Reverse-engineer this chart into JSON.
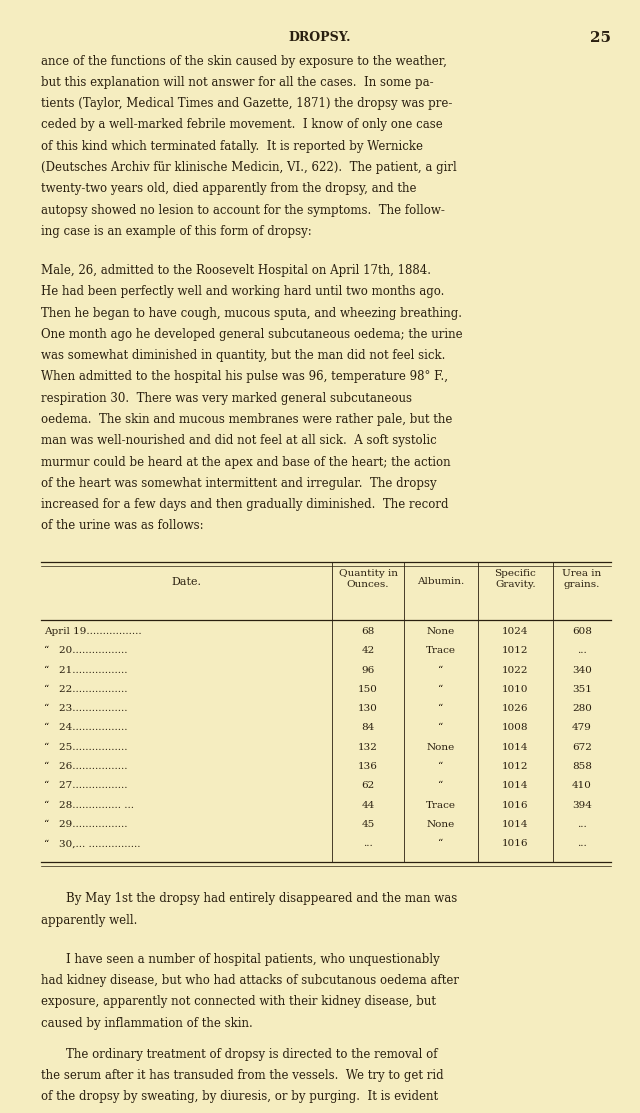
{
  "background_color": "#f5edc0",
  "text_color": "#2a2010",
  "page_header": "DROPSY.",
  "page_number": "25",
  "p1_lines": [
    "ance of the functions of the skin caused by exposure to the weather,",
    "but this explanation will not answer for all the cases.  In some pa-",
    "tients (Taylor, Medical Times and Gazette, 1871) the dropsy was pre-",
    "ceded by a well-marked febrile movement.  I know of only one case",
    "of this kind which terminated fatally.  It is reported by Wernicke",
    "(Deutsches Archiv für klinische Medicin, VI., 622).  The patient, a girl",
    "twenty-two years old, died apparently from the dropsy, and the",
    "autopsy showed no lesion to account for the symptoms.  The follow-",
    "ing case is an example of this form of dropsy:"
  ],
  "p2_lines": [
    "Male, 26, admitted to the Roosevelt Hospital on April 17th, 1884.",
    "He had been perfectly well and working hard until two months ago.",
    "Then he began to have cough, mucous sputa, and wheezing breathing.",
    "One month ago he developed general subcutaneous oedema; the urine",
    "was somewhat diminished in quantity, but the man did not feel sick.",
    "When admitted to the hospital his pulse was 96, temperature 98° F.,",
    "respiration 30.  There was very marked general subcutaneous",
    "oedema.  The skin and mucous membranes were rather pale, but the",
    "man was well-nourished and did not feel at all sick.  A soft systolic",
    "murmur could be heard at the apex and base of the heart; the action",
    "of the heart was somewhat intermittent and irregular.  The dropsy",
    "increased for a few days and then gradually diminished.  The record",
    "of the urine was as follows:"
  ],
  "table_rows": [
    [
      "April 19.................",
      "68",
      "None",
      "1024",
      "608"
    ],
    [
      "“   20.................",
      "42",
      "Trace",
      "1012",
      "..."
    ],
    [
      "“   21.................",
      "96",
      "“",
      "1022",
      "340"
    ],
    [
      "“   22.................",
      "150",
      "“",
      "1010",
      "351"
    ],
    [
      "“   23.................",
      "130",
      "“",
      "1026",
      "280"
    ],
    [
      "“   24.................",
      "84",
      "“",
      "1008",
      "479"
    ],
    [
      "“   25.................",
      "132",
      "None",
      "1014",
      "672"
    ],
    [
      "“   26.................",
      "136",
      "“",
      "1012",
      "858"
    ],
    [
      "“   27.................",
      "62",
      "“",
      "1014",
      "410"
    ],
    [
      "“   28............... ...",
      "44",
      "Trace",
      "1016",
      "394"
    ],
    [
      "“   29.................",
      "45",
      "None",
      "1014",
      "..."
    ],
    [
      "“   30,... ................",
      "...",
      "“",
      "1016",
      "..."
    ]
  ],
  "p3_lines": [
    "By May 1st the dropsy had entirely disappeared and the man was",
    "apparently well."
  ],
  "p4_lines": [
    "I have seen a number of hospital patients, who unquestionably",
    "had kidney disease, but who had attacks of subcutanous oedema after",
    "exposure, apparently not connected with their kidney disease, but",
    "caused by inflammation of the skin."
  ],
  "p5_lines": [
    "The ordinary treatment of dropsy is directed to the removal of",
    "the serum after it has transuded from the vessels.  We try to get rid",
    "of the dropsy by sweating, by diuresis, or by purging.  It is evident"
  ]
}
